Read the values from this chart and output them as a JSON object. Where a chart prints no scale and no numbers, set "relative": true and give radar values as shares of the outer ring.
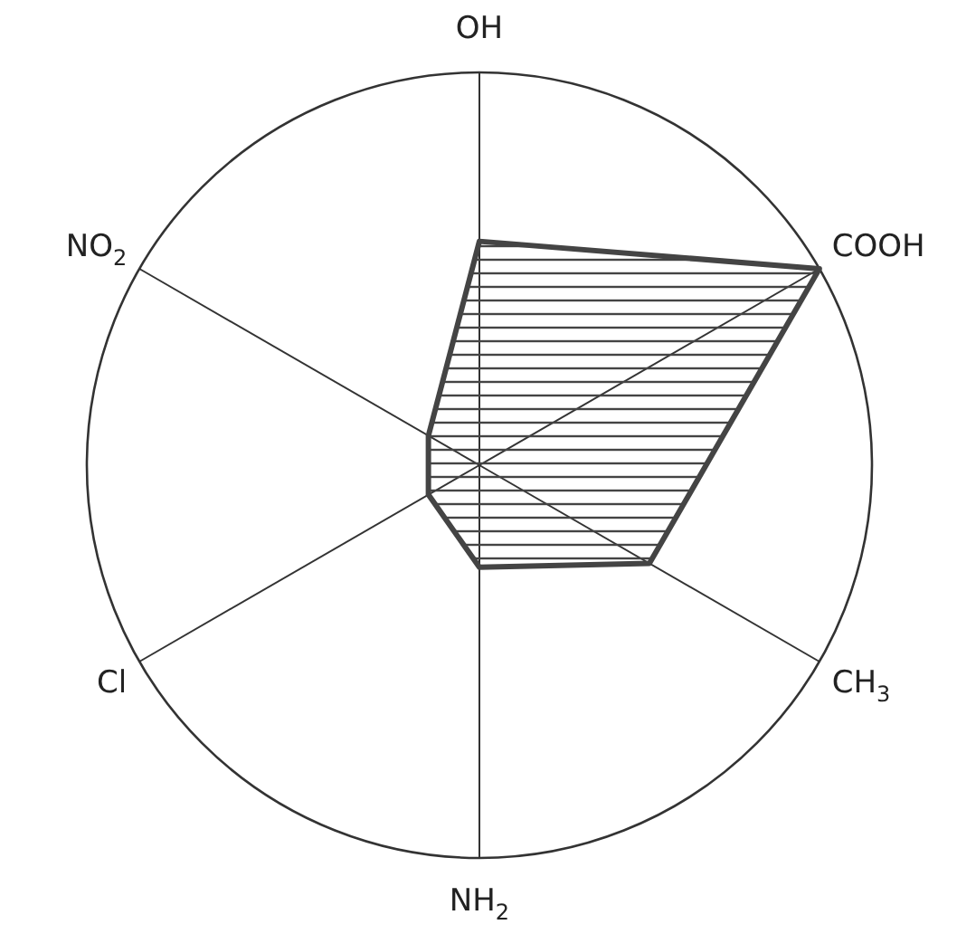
{
  "chart_data": {
    "type": "radar",
    "relative": true,
    "categories": [
      "OH",
      "COOH",
      "CH$_{3}$",
      "NH$_{2}$",
      "Cl",
      "NO$_{2}$"
    ],
    "series": [
      {
        "color": "#444444",
        "values": [
          0.57,
          1.0,
          0.5,
          0.26,
          0.15,
          0.15
        ]
      }
    ]
  }
}
